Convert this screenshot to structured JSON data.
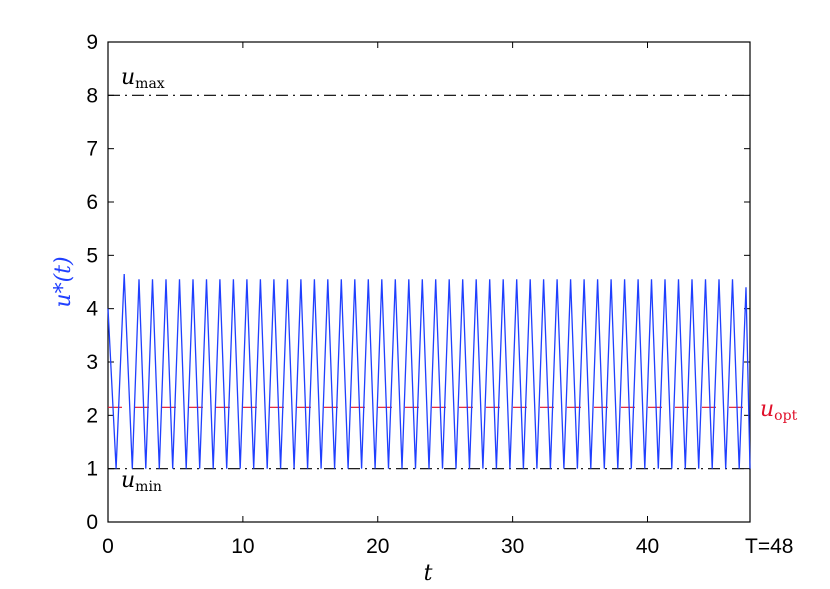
{
  "chart_data": {
    "type": "line",
    "xlabel": "t",
    "ylabel": "u*(t)",
    "xlim": [
      0,
      47.6
    ],
    "ylim": [
      0,
      9
    ],
    "xticks": [
      0,
      10,
      20,
      30,
      40
    ],
    "yticks": [
      0,
      1,
      2,
      3,
      4,
      5,
      6,
      7,
      8,
      9
    ],
    "x_end_label": "T=48",
    "grid": false,
    "series": [
      {
        "name": "u*(t)",
        "color": "#1f3fff",
        "x": [
          0,
          0.6,
          1.2,
          1.8,
          2.3,
          2.8,
          3.3,
          3.8,
          4.3,
          4.8,
          5.3,
          5.8,
          6.3,
          6.8,
          7.3,
          7.8,
          8.3,
          8.8,
          9.3,
          9.8,
          10.3,
          10.8,
          11.3,
          11.8,
          12.3,
          12.8,
          13.3,
          13.8,
          14.3,
          14.8,
          15.3,
          15.8,
          16.3,
          16.8,
          17.3,
          17.8,
          18.3,
          18.8,
          19.3,
          19.8,
          20.3,
          20.8,
          21.3,
          21.8,
          22.3,
          22.8,
          23.3,
          23.8,
          24.3,
          24.8,
          25.3,
          25.8,
          26.3,
          26.8,
          27.3,
          27.8,
          28.3,
          28.8,
          29.3,
          29.8,
          30.3,
          30.8,
          31.3,
          31.8,
          32.3,
          32.8,
          33.3,
          33.8,
          34.3,
          34.8,
          35.3,
          35.8,
          36.3,
          36.8,
          37.3,
          37.8,
          38.3,
          38.8,
          39.3,
          39.8,
          40.3,
          40.8,
          41.3,
          41.8,
          42.3,
          42.8,
          43.3,
          43.8,
          44.3,
          44.8,
          45.3,
          45.8,
          46.3,
          46.8,
          47.3,
          47.6
        ],
        "y": [
          4.0,
          1.0,
          4.65,
          1.0,
          4.55,
          1.0,
          4.55,
          1.0,
          4.55,
          1.0,
          4.55,
          1.0,
          4.55,
          1.0,
          4.55,
          1.0,
          4.55,
          1.0,
          4.55,
          1.0,
          4.55,
          1.0,
          4.55,
          1.0,
          4.55,
          1.0,
          4.55,
          1.0,
          4.55,
          1.0,
          4.55,
          1.0,
          4.55,
          1.0,
          4.55,
          1.0,
          4.55,
          1.0,
          4.55,
          1.0,
          4.55,
          1.0,
          4.55,
          1.0,
          4.55,
          1.0,
          4.55,
          1.0,
          4.55,
          1.0,
          4.55,
          1.0,
          4.55,
          1.0,
          4.55,
          1.0,
          4.55,
          1.0,
          4.55,
          1.0,
          4.55,
          1.0,
          4.55,
          1.0,
          4.55,
          1.0,
          4.55,
          1.0,
          4.55,
          1.0,
          4.55,
          1.0,
          4.55,
          1.0,
          4.55,
          1.0,
          4.55,
          1.0,
          4.55,
          1.0,
          4.55,
          1.0,
          4.55,
          1.0,
          4.55,
          1.0,
          4.55,
          1.0,
          4.55,
          1.0,
          4.55,
          1.0,
          4.55,
          1.0,
          4.4,
          1.0
        ]
      }
    ],
    "reference_lines": [
      {
        "label_main": "u",
        "label_sub": "max",
        "value": 8,
        "style": "dash-dot",
        "color": "#000000"
      },
      {
        "label_main": "u",
        "label_sub": "min",
        "value": 1,
        "style": "dash-dot",
        "color": "#000000"
      },
      {
        "label_main": "u",
        "label_sub": "opt",
        "value": 2.15,
        "style": "dashed",
        "color": "#e0102a"
      }
    ]
  }
}
